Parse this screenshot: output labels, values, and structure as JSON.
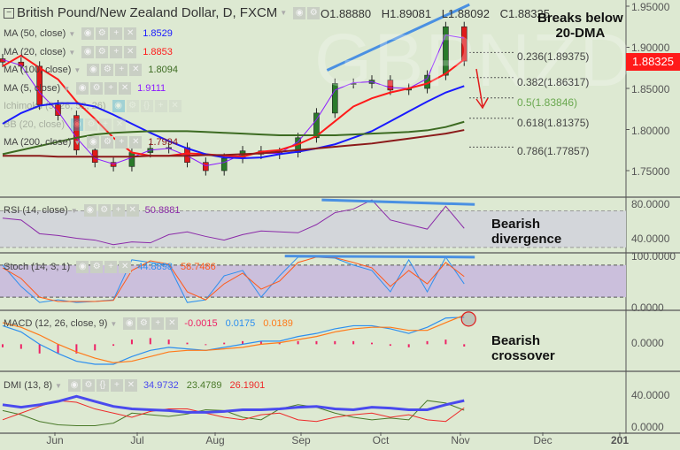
{
  "header": {
    "symbol_title": "British Pound/New Zealand Dollar, D, FXCM",
    "ohlc": {
      "open": "O1.88880",
      "high": "H1.89081",
      "low": "L1.88092",
      "close": "C1.88325"
    },
    "watermark": "GBPNZD"
  },
  "legends": {
    "ma50": {
      "label": "MA (50, close)",
      "value": "1.8529",
      "color": "#1a1aff"
    },
    "ma20": {
      "label": "MA (20, close)",
      "value": "1.8853",
      "color": "#ff1a1a"
    },
    "ma100": {
      "label": "MA (100, close)",
      "value": "1.8094",
      "color": "#3d6b22"
    },
    "ma5": {
      "label": "MA (5, close)",
      "value": "1.9111",
      "color": "#8b1aff"
    },
    "ichimoku": {
      "label": "Ichimoku (9, 26, 52, 26)"
    },
    "bb": {
      "label": "BB (20, close)"
    },
    "ma200": {
      "label": "MA (200, close)",
      "value": "1.7994",
      "color": "#8b1a1a"
    },
    "rsi": {
      "label": "RSI (14, close)",
      "value": "50.8881",
      "color": "#8b2aa8"
    },
    "stoch": {
      "label": "Stoch (14, 3, 1)",
      "k_value": "44.8898",
      "d_value": "58.7486",
      "k_color": "#2d8fef",
      "d_color": "#ff5a1a"
    },
    "macd": {
      "label": "MACD (12, 26, close, 9)",
      "hist_value": "-0.0015",
      "macd_value": "0.0175",
      "signal_value": "0.0189",
      "hist_color": "#ee2266",
      "macd_color": "#2d8fef",
      "signal_color": "#ff7a1a"
    },
    "dmi": {
      "label": "DMI (13, 8)",
      "adx_value": "34.9732",
      "plus_di_value": "23.4789",
      "minus_di_value": "26.1901",
      "adx_color": "#4a4aee",
      "plus_color": "#4a7a2a",
      "minus_color": "#ee2a2a"
    }
  },
  "annotations": {
    "breaks": "Breaks below 20-DMA",
    "breaks_line1": "Breaks below",
    "breaks_line2": "20-DMA",
    "rsi_note_line1": "Bearish",
    "rsi_note_line2": "divergence",
    "macd_note_line1": "Bearish",
    "macd_note_line2": "crossover"
  },
  "current_price": "1.88325",
  "fib_levels": [
    {
      "label": "0.236(1.89375)",
      "value": 1.89375,
      "color": "#444444"
    },
    {
      "label": "0.382(1.86317)",
      "value": 1.86317,
      "color": "#444444"
    },
    {
      "label": "0.5(1.83846)",
      "value": 1.83846,
      "color": "#6aa84f"
    },
    {
      "label": "0.618(1.81375)",
      "value": 1.81375,
      "color": "#444444"
    },
    {
      "label": "0.786(1.77857)",
      "value": 1.77857,
      "color": "#444444"
    }
  ],
  "price_axis": [
    "1.95000",
    "1.90000",
    "1.85000",
    "1.80000",
    "1.75000"
  ],
  "rsi_axis": [
    "80.0000",
    "40.0000"
  ],
  "stoch_axis": [
    "100.0000",
    "0.0000"
  ],
  "macd_axis": [
    "0.0000"
  ],
  "dmi_axis": [
    "40.0000",
    "0.0000"
  ],
  "time_axis": [
    "Jun",
    "Jul",
    "Aug",
    "Sep",
    "Oct",
    "Nov",
    "Dec",
    "201"
  ],
  "chart_data": {
    "type": "line",
    "title": "British Pound/New Zealand Dollar, D, FXCM",
    "dates": [
      "2017-05-12",
      "2017-05-19",
      "2017-05-26",
      "2017-06-02",
      "2017-06-09",
      "2017-06-16",
      "2017-06-23",
      "2017-06-30",
      "2017-07-07",
      "2017-07-14",
      "2017-07-21",
      "2017-07-28",
      "2017-08-04",
      "2017-08-11",
      "2017-08-18",
      "2017-08-25",
      "2017-09-01",
      "2017-09-08",
      "2017-09-15",
      "2017-09-22",
      "2017-09-29",
      "2017-10-06",
      "2017-10-13",
      "2017-10-20",
      "2017-10-27",
      "2017-11-03"
    ],
    "price": {
      "ylim": [
        1.73,
        1.96
      ],
      "close": [
        1.882,
        1.877,
        1.83,
        1.817,
        1.775,
        1.76,
        1.755,
        1.772,
        1.777,
        1.778,
        1.76,
        1.75,
        1.765,
        1.774,
        1.77,
        1.772,
        1.79,
        1.82,
        1.856,
        1.856,
        1.86,
        1.848,
        1.85,
        1.866,
        1.925,
        1.88325
      ],
      "series": [
        {
          "name": "MA (5, close)",
          "color": "#8b1aff",
          "values": [
            1.885,
            1.878,
            1.845,
            1.822,
            1.79,
            1.765,
            1.758,
            1.766,
            1.775,
            1.777,
            1.768,
            1.756,
            1.76,
            1.77,
            1.771,
            1.771,
            1.785,
            1.812,
            1.848,
            1.857,
            1.858,
            1.851,
            1.85,
            1.862,
            1.915,
            1.9111
          ]
        },
        {
          "name": "MA (20, close)",
          "color": "#ff1a1a",
          "values": [
            1.877,
            1.89,
            1.875,
            1.861,
            1.834,
            1.813,
            1.79,
            1.772,
            1.768,
            1.768,
            1.771,
            1.77,
            1.768,
            1.767,
            1.773,
            1.775,
            1.782,
            1.792,
            1.81,
            1.828,
            1.838,
            1.845,
            1.85,
            1.856,
            1.868,
            1.8853
          ]
        },
        {
          "name": "MA (50, close)",
          "color": "#1a1aff",
          "values": [
            1.807,
            1.82,
            1.829,
            1.832,
            1.832,
            1.828,
            1.818,
            1.807,
            1.796,
            1.786,
            1.777,
            1.77,
            1.766,
            1.765,
            1.766,
            1.77,
            1.773,
            1.777,
            1.782,
            1.79,
            1.798,
            1.81,
            1.822,
            1.834,
            1.845,
            1.8529
          ]
        },
        {
          "name": "MA (100, close)",
          "color": "#3d6b22",
          "values": [
            1.77,
            1.775,
            1.78,
            1.785,
            1.79,
            1.794,
            1.796,
            1.797,
            1.798,
            1.798,
            1.798,
            1.797,
            1.796,
            1.795,
            1.794,
            1.793,
            1.793,
            1.793,
            1.793,
            1.794,
            1.795,
            1.796,
            1.797,
            1.799,
            1.803,
            1.8094
          ]
        },
        {
          "name": "MA (200, close)",
          "color": "#8b1a1a",
          "values": [
            1.768,
            1.768,
            1.768,
            1.767,
            1.767,
            1.767,
            1.767,
            1.767,
            1.768,
            1.768,
            1.768,
            1.769,
            1.769,
            1.77,
            1.771,
            1.773,
            1.775,
            1.777,
            1.779,
            1.781,
            1.783,
            1.786,
            1.789,
            1.792,
            1.795,
            1.7994
          ]
        }
      ],
      "trendline": {
        "start": [
          "2017-09-12",
          1.872
        ],
        "end": [
          "2017-11-05",
          1.952
        ],
        "color": "#4a90e2"
      }
    },
    "rsi": {
      "ylim": [
        25,
        85
      ],
      "bands": [
        30,
        70
      ],
      "values": [
        62,
        60,
        45,
        43,
        40,
        38,
        33,
        36,
        35,
        44,
        47,
        42,
        38,
        44,
        48,
        47,
        46,
        55,
        68,
        72,
        82,
        60,
        55,
        50,
        75,
        50.8881
      ],
      "trendline": {
        "start": [
          "2017-09-10",
          82
        ],
        "end": [
          "2017-11-07",
          77
        ]
      }
    },
    "stoch": {
      "ylim": [
        0,
        100
      ],
      "bands": [
        20,
        80
      ],
      "k": [
        80,
        40,
        10,
        15,
        10,
        12,
        15,
        90,
        85,
        80,
        10,
        15,
        60,
        70,
        20,
        60,
        95,
        95,
        93,
        80,
        70,
        30,
        90,
        30,
        95,
        44.8898
      ],
      "d": [
        75,
        55,
        20,
        12,
        12,
        12,
        14,
        70,
        88,
        82,
        30,
        15,
        45,
        65,
        35,
        50,
        85,
        95,
        94,
        85,
        75,
        40,
        70,
        45,
        85,
        58.7486
      ],
      "trendline": {
        "start": [
          "2017-08-27",
          97
        ],
        "end": [
          "2017-11-07",
          95
        ]
      }
    },
    "macd": {
      "ylim": [
        -0.017,
        0.022
      ],
      "macd": [
        0.012,
        0.008,
        0.0,
        -0.006,
        -0.011,
        -0.013,
        -0.013,
        -0.008,
        -0.004,
        -0.002,
        -0.003,
        -0.004,
        -0.002,
        0.0,
        0.002,
        0.002,
        0.005,
        0.007,
        0.01,
        0.012,
        0.012,
        0.01,
        0.007,
        0.011,
        0.017,
        0.0175
      ],
      "signal": [
        0.014,
        0.011,
        0.006,
        0.0,
        -0.005,
        -0.009,
        -0.012,
        -0.011,
        -0.008,
        -0.005,
        -0.004,
        -0.004,
        -0.003,
        -0.002,
        0.0,
        0.001,
        0.003,
        0.005,
        0.008,
        0.01,
        0.011,
        0.011,
        0.009,
        0.009,
        0.014,
        0.0189
      ],
      "histogram": [
        -0.002,
        -0.003,
        -0.006,
        -0.006,
        -0.006,
        -0.004,
        -0.001,
        0.003,
        0.004,
        0.003,
        0.001,
        0.0,
        0.001,
        0.002,
        0.002,
        0.001,
        0.002,
        0.002,
        0.002,
        0.002,
        0.001,
        -0.001,
        -0.002,
        0.002,
        0.003,
        -0.0015
      ]
    },
    "dmi": {
      "ylim": [
        -3,
        70
      ],
      "adx": [
        30,
        27,
        30,
        34,
        40,
        34,
        28,
        25,
        24,
        23,
        21,
        21,
        22,
        24,
        24,
        25,
        27,
        28,
        25,
        24,
        27,
        26,
        24,
        24,
        30,
        34.9732
      ],
      "plus_di": [
        23,
        18,
        10,
        6,
        5,
        5,
        8,
        20,
        18,
        16,
        19,
        24,
        23,
        15,
        12,
        25,
        30,
        27,
        20,
        15,
        12,
        14,
        12,
        35,
        32,
        23.4789
      ],
      "minus_di": [
        12,
        20,
        28,
        35,
        33,
        25,
        20,
        15,
        22,
        25,
        25,
        20,
        15,
        12,
        18,
        20,
        12,
        10,
        15,
        18,
        20,
        15,
        18,
        12,
        10,
        26.1901
      ]
    }
  }
}
